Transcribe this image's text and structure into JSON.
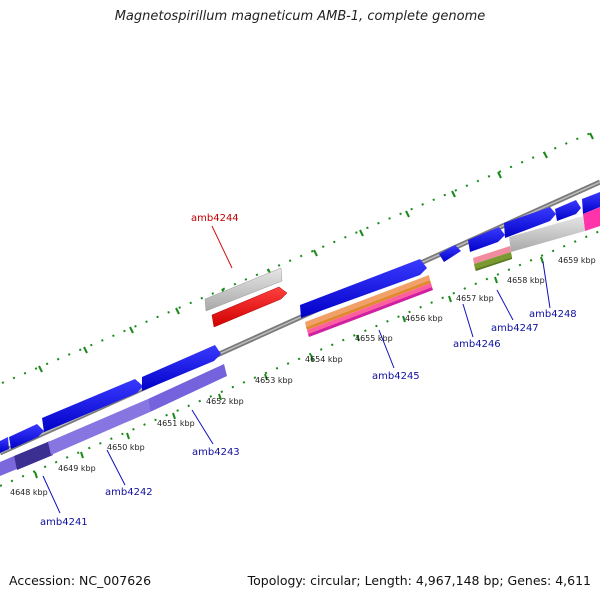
{
  "title": "Magnetospirillum magneticum AMB-1, complete genome",
  "footer": {
    "accession": "Accession: NC_007626",
    "summary": "Topology: circular; Length: 4,967,148 bp; Genes: 4,611"
  },
  "scale_labels": [
    "4648 kbp",
    "4649 kbp",
    "4650 kbp",
    "4651 kbp",
    "4652 kbp",
    "4653 kbp",
    "4654 kbp",
    "4655 kbp",
    "4656 kbp",
    "4657 kbp",
    "4658 kbp",
    "4659 kbp"
  ],
  "gene_labels": {
    "amb4241": "amb4241",
    "amb4242": "amb4242",
    "amb4243": "amb4243",
    "amb4244": "amb4244",
    "amb4245": "amb4245",
    "amb4246": "amb4246",
    "amb4247": "amb4247",
    "amb4248": "amb4248"
  },
  "colors": {
    "forward_cds": "#1010e8",
    "reverse_cds_red": "#ff1010",
    "grey_feature": "#c8c8c8",
    "purple_feature": "#8070e0",
    "pink_feature": "#ff33aa",
    "olive_feature": "#7a9a30",
    "tick_green": "#1a8a1a",
    "backbone": "#808080",
    "label_blue": "#1010a0",
    "label_red": "#c00000"
  }
}
